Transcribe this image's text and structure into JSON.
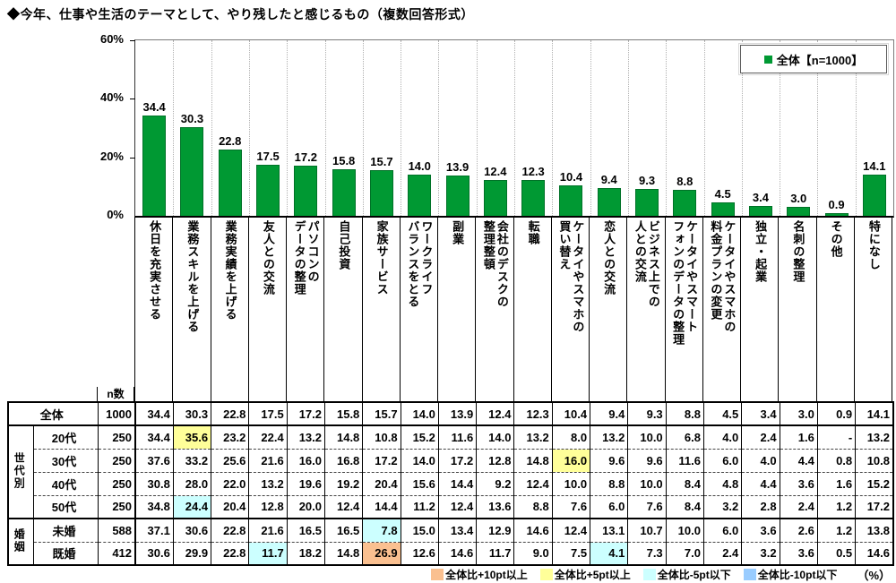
{
  "title": "◆今年、仕事や生活のテーマとして、やり残したと感じるもの（複数回答形式）",
  "chart_data": {
    "type": "bar",
    "title": "◆今年、仕事や生活のテーマとして、やり残したと感じるもの（複数回答形式）",
    "legend_label": "全体【n=1000】",
    "legend_position": "top-right",
    "bar_color": "#009933",
    "grid": "vertical-dotted",
    "ylim": [
      0,
      60
    ],
    "yticks": [
      {
        "value": 60,
        "label": "60%"
      },
      {
        "value": 40,
        "label": "40%"
      },
      {
        "value": 20,
        "label": "20%"
      },
      {
        "value": 0,
        "label": "0%"
      }
    ],
    "categories": [
      "休日を充実させる",
      "業務スキルを上げる",
      "業務実績を上げる",
      "友人との交流",
      "パソコンの\nデータの整理",
      "自己投資",
      "家族サービス",
      "ワークライフ\nバランスをとる",
      "副業",
      "会社のデスクの\n整理整頓",
      "転職",
      "ケータイやスマホの\n買い替え",
      "恋人との交流",
      "ビジネス上での\n人との交流",
      "ケータイやスマート\nフォンのデータの整理",
      "ケータイやスマホの\n料金プランの変更",
      "独立・起業",
      "名刺の整理",
      "その他",
      "特になし"
    ],
    "values": [
      34.4,
      30.3,
      22.8,
      17.5,
      17.2,
      15.8,
      15.7,
      14.0,
      13.9,
      12.4,
      12.3,
      10.4,
      9.4,
      9.3,
      8.8,
      4.5,
      3.4,
      3.0,
      0.9,
      14.1
    ]
  },
  "table": {
    "n_header": "n数",
    "row_groups": [
      {
        "group_label": "",
        "rows": [
          {
            "label": "全体",
            "n": "1000",
            "values": [
              "34.4",
              "30.3",
              "22.8",
              "17.5",
              "17.2",
              "15.8",
              "15.7",
              "14.0",
              "13.9",
              "12.4",
              "12.3",
              "10.4",
              "9.4",
              "9.3",
              "8.8",
              "4.5",
              "3.4",
              "3.0",
              "0.9",
              "14.1"
            ],
            "highlights": {}
          }
        ]
      },
      {
        "group_label": "世代別",
        "rows": [
          {
            "label": "20代",
            "n": "250",
            "values": [
              "34.4",
              "35.6",
              "23.2",
              "22.4",
              "13.2",
              "14.8",
              "10.8",
              "15.2",
              "11.6",
              "14.0",
              "13.2",
              "8.0",
              "13.2",
              "10.0",
              "6.8",
              "4.0",
              "2.4",
              "1.6",
              "-",
              "13.2"
            ],
            "highlights": {
              "1": "plus5"
            }
          },
          {
            "label": "30代",
            "n": "250",
            "values": [
              "37.6",
              "33.2",
              "25.6",
              "21.6",
              "16.0",
              "16.8",
              "17.2",
              "14.0",
              "17.2",
              "12.8",
              "14.8",
              "16.0",
              "9.6",
              "9.6",
              "11.6",
              "6.0",
              "4.0",
              "4.4",
              "0.8",
              "10.8"
            ],
            "highlights": {
              "11": "plus5"
            }
          },
          {
            "label": "40代",
            "n": "250",
            "values": [
              "30.8",
              "28.0",
              "22.0",
              "13.2",
              "19.6",
              "19.2",
              "20.4",
              "15.6",
              "14.4",
              "9.2",
              "12.4",
              "10.0",
              "8.8",
              "10.0",
              "8.4",
              "4.8",
              "4.4",
              "3.6",
              "1.6",
              "15.2"
            ],
            "highlights": {}
          },
          {
            "label": "50代",
            "n": "250",
            "values": [
              "34.8",
              "24.4",
              "20.4",
              "12.8",
              "20.0",
              "12.4",
              "14.4",
              "11.2",
              "12.4",
              "13.6",
              "8.8",
              "7.6",
              "6.0",
              "7.6",
              "8.4",
              "3.2",
              "2.8",
              "2.4",
              "1.2",
              "17.2"
            ],
            "highlights": {
              "1": "minus5"
            }
          }
        ]
      },
      {
        "group_label": "婚姻",
        "rows": [
          {
            "label": "未婚",
            "n": "588",
            "values": [
              "37.1",
              "30.6",
              "22.8",
              "21.6",
              "16.5",
              "16.5",
              "7.8",
              "15.0",
              "13.4",
              "12.9",
              "14.6",
              "12.4",
              "13.1",
              "10.7",
              "10.0",
              "6.0",
              "3.6",
              "2.6",
              "1.2",
              "13.8"
            ],
            "highlights": {
              "6": "minus5"
            }
          },
          {
            "label": "既婚",
            "n": "412",
            "values": [
              "30.6",
              "29.9",
              "22.8",
              "11.7",
              "18.2",
              "14.8",
              "26.9",
              "12.6",
              "14.6",
              "11.7",
              "9.0",
              "7.5",
              "4.1",
              "7.3",
              "7.0",
              "2.4",
              "3.2",
              "3.6",
              "0.5",
              "14.6"
            ],
            "highlights": {
              "3": "minus5",
              "6": "plus10",
              "12": "minus5"
            }
          }
        ]
      }
    ]
  },
  "footer_legend": {
    "items": [
      {
        "key": "plus10",
        "label": "全体比+10pt以上",
        "color": "#FAC090"
      },
      {
        "key": "plus5",
        "label": "全体比+5pt以上",
        "color": "#FFFF99"
      },
      {
        "key": "minus5",
        "label": "全体比-5pt以下",
        "color": "#CCFFFF"
      },
      {
        "key": "minus10",
        "label": "全体比-10pt以下",
        "color": "#99CCFF"
      }
    ],
    "unit": "（%）"
  }
}
